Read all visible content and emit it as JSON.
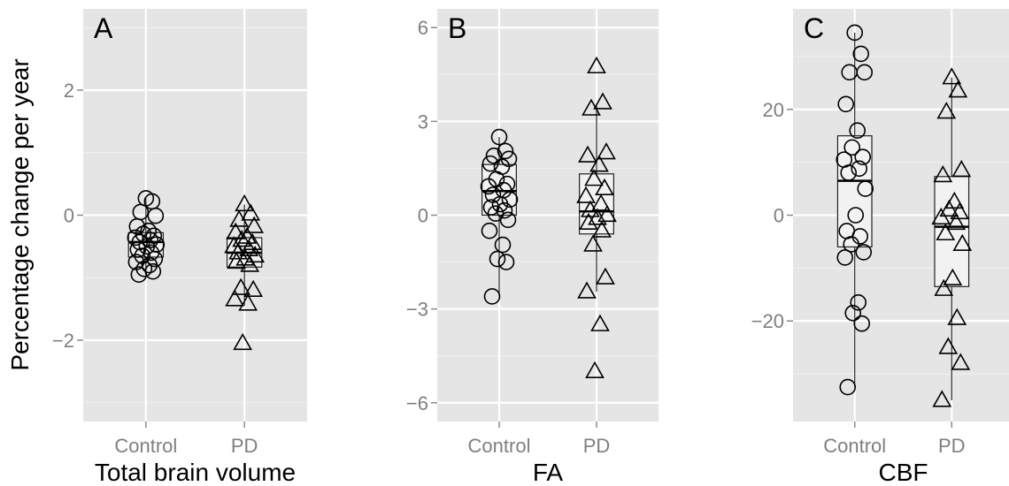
{
  "figure": {
    "y_axis_title": "Percentage change per year"
  },
  "chart_data": [
    {
      "type": "box",
      "panel_tag": "A",
      "xlabel": "Total brain volume",
      "categories": [
        "Control",
        "PD"
      ],
      "ylim": [
        -3.3,
        3.3
      ],
      "yticks": [
        -2,
        0,
        2
      ],
      "ytick_labels": [
        "−2",
        "0",
        "2"
      ],
      "boxes": [
        {
          "category": "Control",
          "q1": -0.67,
          "median": -0.43,
          "q3": -0.28,
          "whisker_low": -0.95,
          "whisker_high": 0.27
        },
        {
          "category": "PD",
          "q1": -0.83,
          "median": -0.6,
          "q3": -0.36,
          "whisker_low": -1.45,
          "whisker_high": 0.17
        }
      ],
      "series": [
        {
          "name": "Control",
          "marker": "circle",
          "category": "Control",
          "values": [
            0.27,
            0.22,
            0.05,
            -0.01,
            -0.18,
            -0.25,
            -0.3,
            -0.33,
            -0.36,
            -0.4,
            -0.43,
            -0.47,
            -0.5,
            -0.55,
            -0.6,
            -0.65,
            -0.7,
            -0.75,
            -0.8,
            -0.86,
            -0.9,
            -0.95
          ]
        },
        {
          "name": "PD",
          "marker": "triangle",
          "category": "PD",
          "values": [
            0.17,
            0.02,
            -0.08,
            -0.18,
            -0.28,
            -0.35,
            -0.4,
            -0.45,
            -0.5,
            -0.55,
            -0.6,
            -0.65,
            -0.7,
            -0.75,
            -0.8,
            -1.17,
            -1.2,
            -1.35,
            -1.42,
            -2.05
          ]
        }
      ]
    },
    {
      "type": "box",
      "panel_tag": "B",
      "xlabel": "FA",
      "categories": [
        "Control",
        "PD"
      ],
      "ylim": [
        -6.6,
        6.6
      ],
      "yticks": [
        -6,
        -3,
        0,
        3,
        6
      ],
      "ytick_labels": [
        "−6",
        "−3",
        "0",
        "3",
        "6"
      ],
      "boxes": [
        {
          "category": "Control",
          "q1": 0.0,
          "median": 0.77,
          "q3": 1.62,
          "whisker_low": -2.6,
          "whisker_high": 2.5
        },
        {
          "category": "PD",
          "q1": -0.6,
          "median": 0.12,
          "q3": 1.32,
          "whisker_low": -2.45,
          "whisker_high": 3.5
        }
      ],
      "series": [
        {
          "name": "Control",
          "marker": "circle",
          "category": "Control",
          "values": [
            2.5,
            2.05,
            1.9,
            1.8,
            1.65,
            1.55,
            1.15,
            1.0,
            0.92,
            0.8,
            0.65,
            0.5,
            0.35,
            0.25,
            0.15,
            0.05,
            -0.15,
            -0.5,
            -0.95,
            -1.4,
            -1.5,
            -2.6
          ]
        },
        {
          "name": "PD",
          "marker": "triangle",
          "category": "PD",
          "values": [
            4.75,
            3.6,
            3.4,
            2.0,
            1.9,
            1.6,
            1.15,
            0.85,
            0.6,
            0.35,
            0.15,
            0.0,
            -0.1,
            -0.25,
            -0.5,
            -0.95,
            -2.0,
            -2.45,
            -3.5,
            -5.0
          ]
        }
      ]
    },
    {
      "type": "box",
      "panel_tag": "C",
      "xlabel": "CBF",
      "categories": [
        "Control",
        "PD"
      ],
      "ylim": [
        -39,
        39
      ],
      "yticks": [
        -20,
        0,
        20
      ],
      "ytick_labels": [
        "−20",
        "0",
        "20"
      ],
      "boxes": [
        {
          "category": "Control",
          "q1": -6.0,
          "median": 6.5,
          "q3": 15.0,
          "whisker_low": -32.5,
          "whisker_high": 34.5
        },
        {
          "category": "PD",
          "q1": -13.5,
          "median": -2.2,
          "q3": 7.3,
          "whisker_low": -35.0,
          "whisker_high": 26.0
        }
      ],
      "series": [
        {
          "name": "Control",
          "marker": "circle",
          "category": "Control",
          "values": [
            34.5,
            30.5,
            27.0,
            27.0,
            21.0,
            16.0,
            12.8,
            11.0,
            10.5,
            8.8,
            8.0,
            5.0,
            0.0,
            -3.0,
            -4.0,
            -5.5,
            -7.0,
            -8.0,
            -16.5,
            -18.5,
            -20.5,
            -32.5
          ]
        },
        {
          "name": "PD",
          "marker": "triangle",
          "category": "PD",
          "values": [
            26.0,
            23.5,
            19.5,
            8.5,
            7.5,
            2.5,
            1.0,
            0.5,
            -0.5,
            -1.5,
            -3.5,
            -5.5,
            -12.0,
            -14.0,
            -19.5,
            -25.0,
            -28.0,
            -35.0
          ]
        }
      ]
    }
  ]
}
